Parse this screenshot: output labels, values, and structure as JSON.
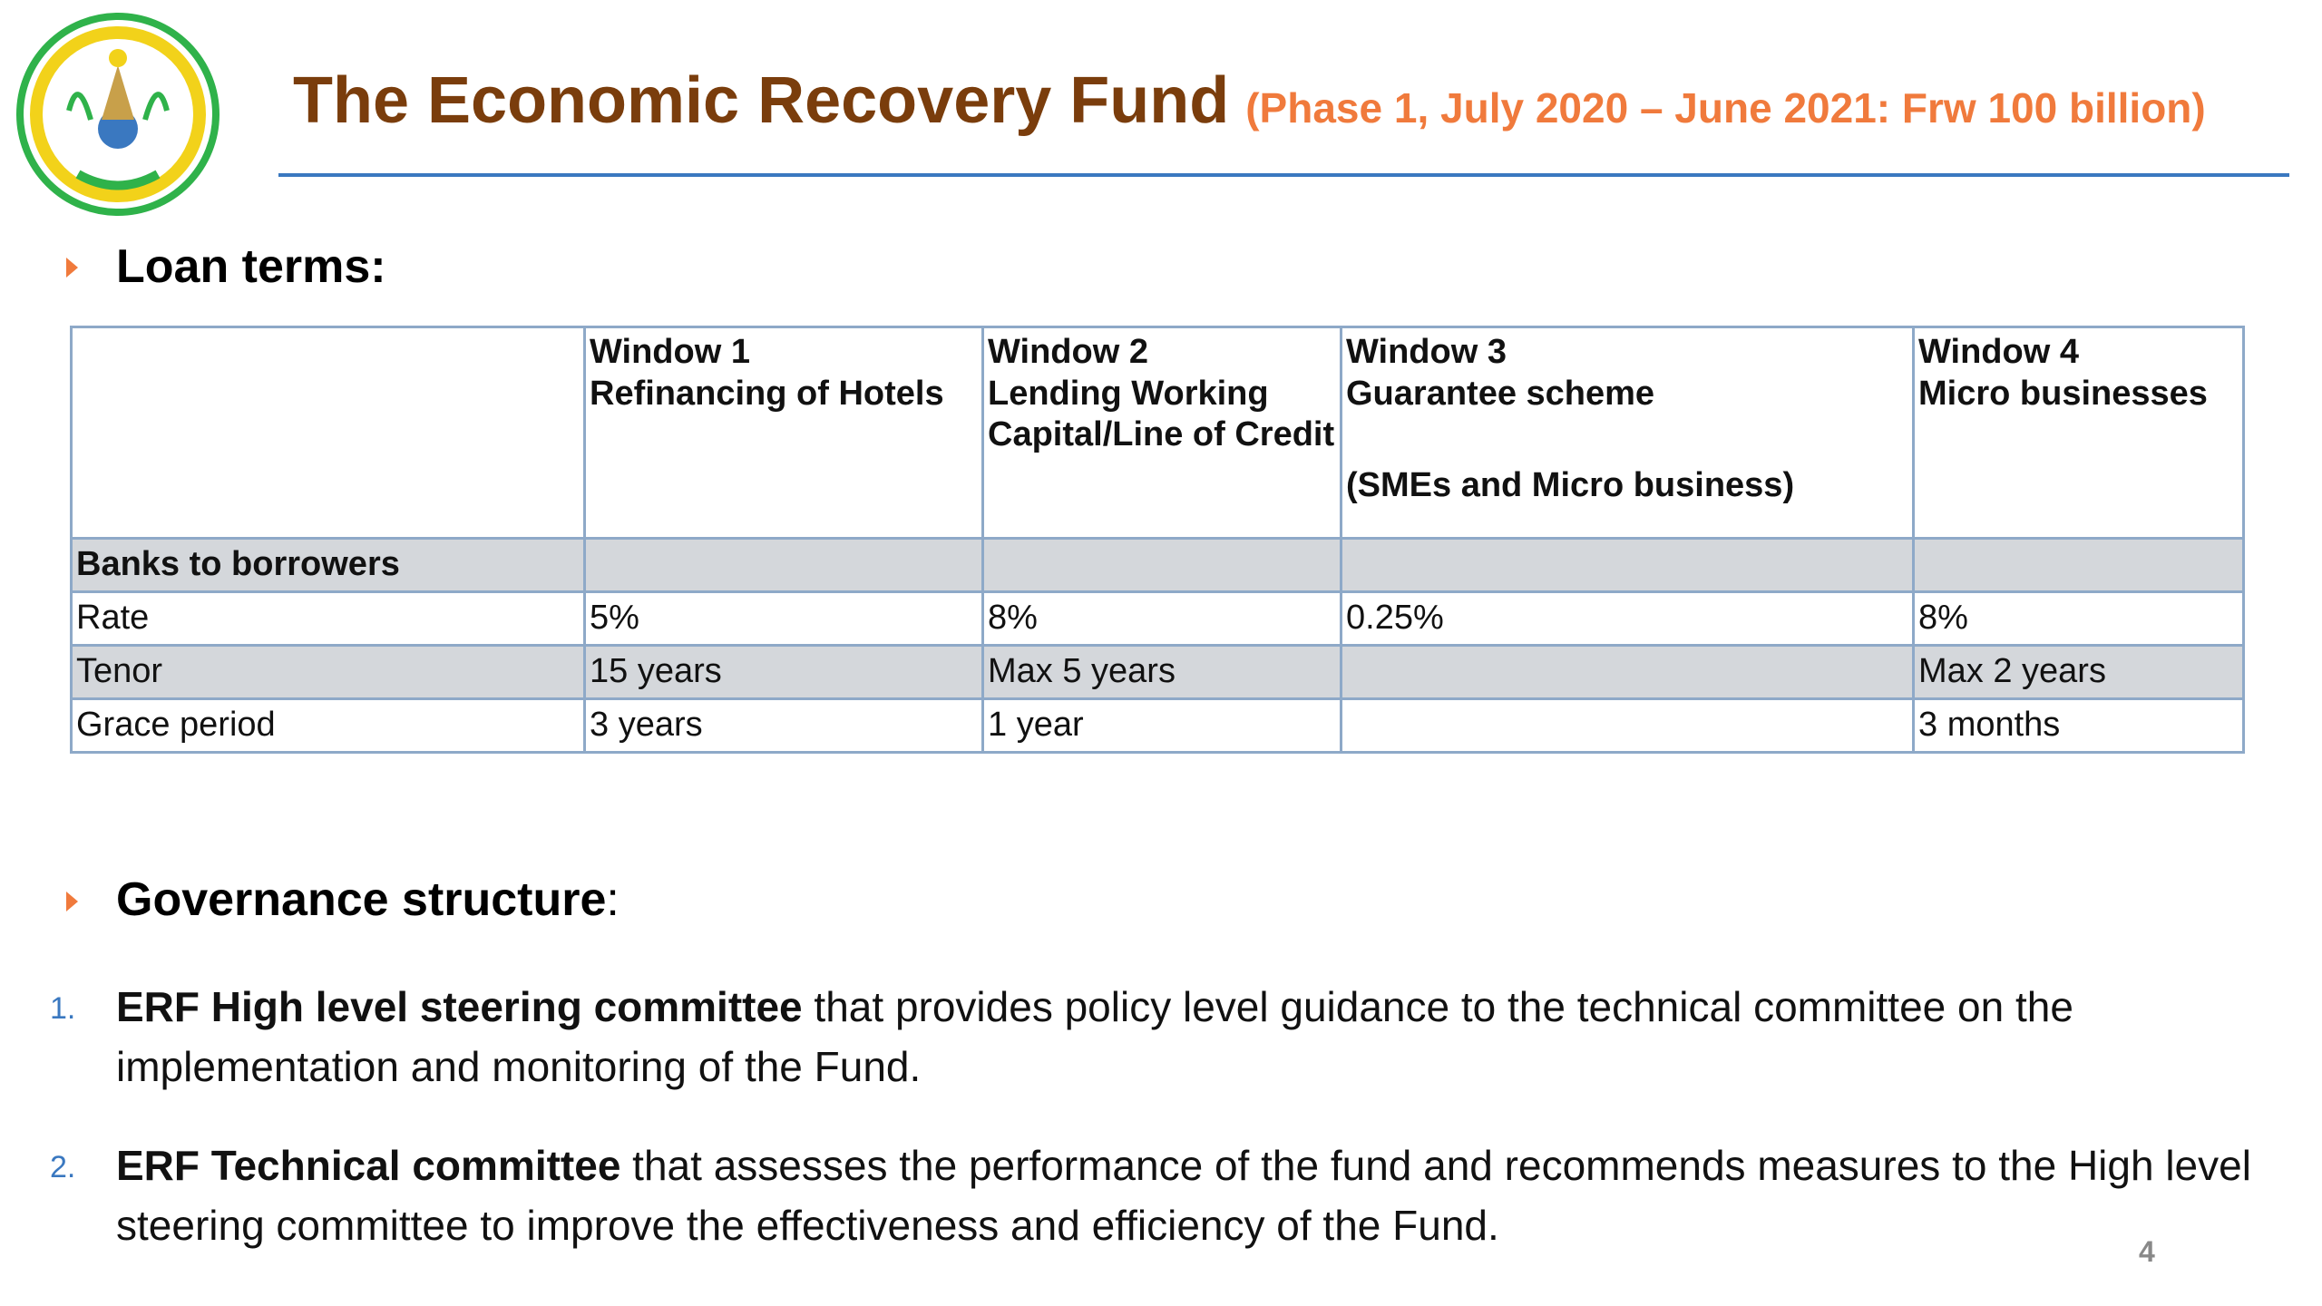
{
  "header": {
    "title": "The Economic Recovery Fund",
    "subtitle": "(Phase 1, July 2020 – June 2021: Frw 100 billion)"
  },
  "loan_terms": {
    "heading": "Loan terms:",
    "table": {
      "columns": [
        null,
        [
          "Window 1",
          "Refinancing of Hotels"
        ],
        [
          "Window 2",
          "Lending Working Capital/Line of Credit"
        ],
        [
          "Window 3",
          "Guarantee scheme",
          "(SMEs and Micro business)"
        ],
        [
          "Window 4",
          "Micro businesses"
        ]
      ],
      "rows": [
        [
          "Banks to borrowers",
          null,
          null,
          null,
          null
        ],
        [
          "Rate",
          "5%",
          "8%",
          "0.25%",
          "8%"
        ],
        [
          "Tenor",
          "15 years",
          "Max 5 years",
          null,
          "Max 2 years"
        ],
        [
          "Grace period",
          "3 years",
          "1 year",
          null,
          "3 months"
        ]
      ]
    }
  },
  "governance": {
    "heading": "Governance structure",
    "heading_suffix": ":",
    "items": [
      {
        "number": "1.",
        "bold": "ERF High level steering committee",
        "text": " that provides policy level guidance to the technical committee on the implementation and monitoring of the Fund."
      },
      {
        "number": "2.",
        "bold": "ERF Technical committee",
        "text": " that assesses the performance of the fund and recommends measures to the High level steering committee to improve the effectiveness and efficiency of the Fund."
      }
    ]
  },
  "page_number": "4"
}
